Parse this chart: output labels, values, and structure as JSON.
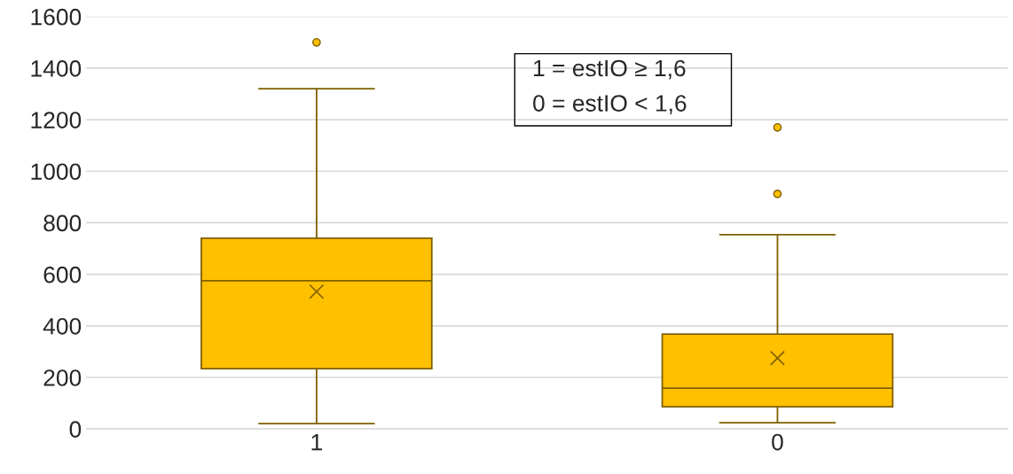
{
  "chart_data": {
    "type": "box",
    "categories": [
      "1",
      "0"
    ],
    "boxes": [
      {
        "low": 21,
        "q1": 234,
        "median": 575,
        "q3": 740,
        "high": 1320,
        "mean": 533,
        "outliers": [
          1500
        ]
      },
      {
        "low": 24,
        "q1": 86,
        "median": 158,
        "q3": 368,
        "high": 754,
        "mean": 275,
        "outliers": [
          912,
          1170
        ]
      }
    ],
    "color": "#ffc000",
    "ylim": [
      0,
      1600
    ],
    "yticks": [
      0,
      200,
      400,
      600,
      800,
      1000,
      1200,
      1400,
      1600
    ],
    "grid": "y",
    "annotations": [
      "1 = estIO ≥ 1,6",
      "0 = estIO < 1,6"
    ]
  }
}
